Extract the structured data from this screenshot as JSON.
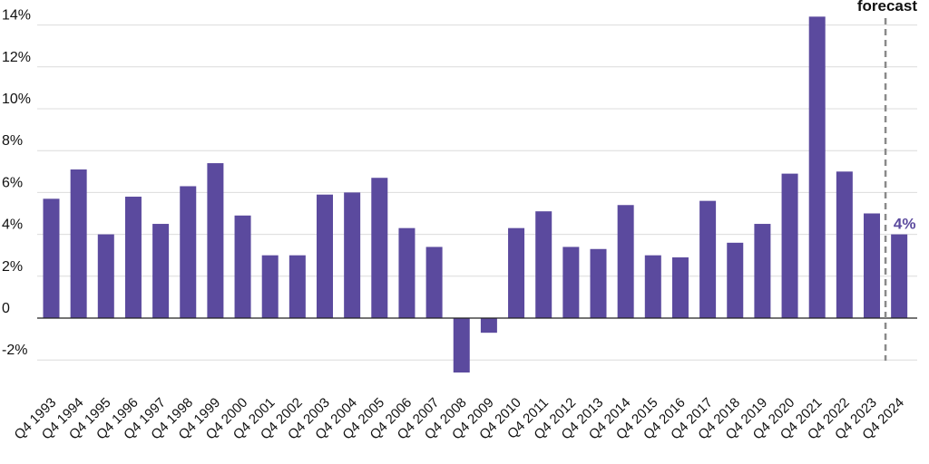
{
  "chart_data": {
    "type": "bar",
    "title": "",
    "xlabel": "",
    "ylabel": "",
    "ylim": [
      -3,
      14.5
    ],
    "yticks": [
      -2,
      0,
      2,
      4,
      6,
      8,
      10,
      12,
      14
    ],
    "ytick_labels": [
      "-2%",
      "0",
      "2%",
      "4%",
      "6%",
      "8%",
      "10%",
      "12%",
      "14%"
    ],
    "grid": true,
    "categories": [
      "Q4 1993",
      "Q4 1994",
      "Q4 1995",
      "Q4 1996",
      "Q4 1997",
      "Q4 1998",
      "Q4 1999",
      "Q4 2000",
      "Q4 2001",
      "Q4 2002",
      "Q4 2003",
      "Q4 2004",
      "Q4 2005",
      "Q4 2006",
      "Q4 2007",
      "Q4 2008",
      "Q4 2009",
      "Q4 2010",
      "Q4 2011",
      "Q4 2012",
      "Q4 2013",
      "Q4 2014",
      "Q4 2015",
      "Q4 2016",
      "Q4 2017",
      "Q4 2018",
      "Q4 2019",
      "Q4 2020",
      "Q4 2021",
      "Q4 2022",
      "Q4 2023",
      "Q4 2024"
    ],
    "values": [
      5.7,
      7.1,
      4.0,
      5.8,
      4.5,
      6.3,
      7.4,
      4.9,
      3.0,
      3.0,
      5.9,
      6.0,
      6.7,
      4.3,
      3.4,
      -2.6,
      -0.7,
      4.3,
      5.1,
      3.4,
      3.3,
      5.4,
      3.0,
      2.9,
      5.6,
      3.6,
      4.5,
      6.9,
      14.4,
      7.0,
      5.0,
      4.0
    ],
    "bar_color": "#5b4a9e",
    "forecast_label": "forecast",
    "forecast_value_label": "4%",
    "forecast_start_index": 31
  }
}
